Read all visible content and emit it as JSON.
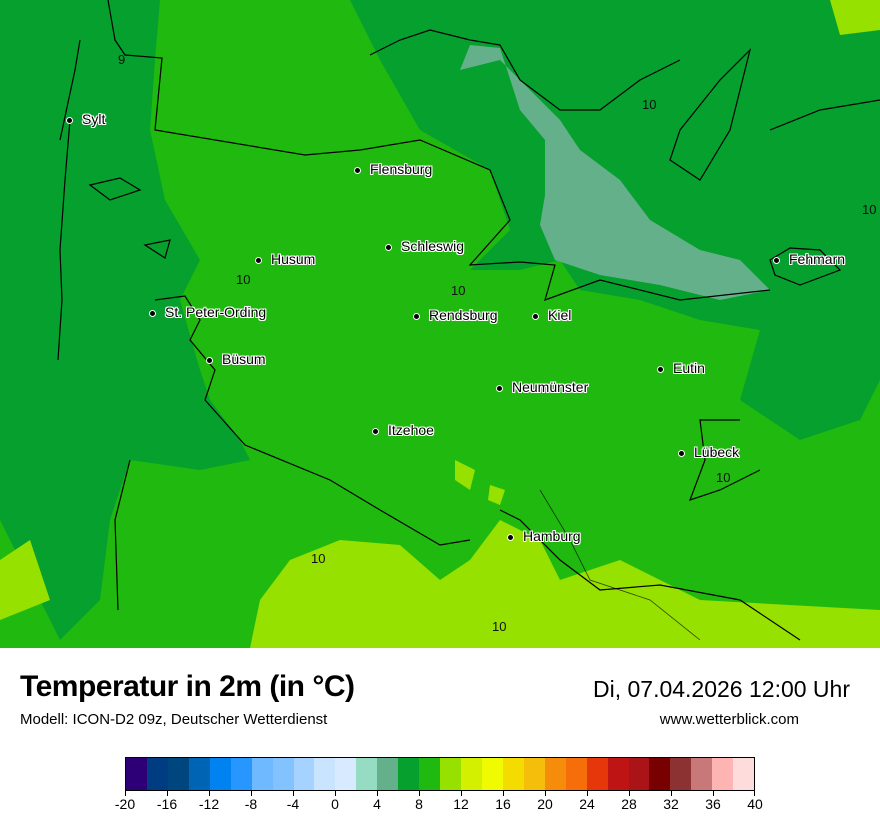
{
  "header": {
    "title": "Temperatur in 2m (in °C)",
    "subtitle": "Modell: ICON-D2 09z, Deutscher Wetterdienst",
    "datetime": "Di, 07.04.2026 12:00 Uhr",
    "website": "www.wetterblick.com"
  },
  "map": {
    "cities": [
      "Sylt",
      "Flensburg",
      "Schleswig",
      "Husum",
      "St. Peter-Ording",
      "Rendsburg",
      "Kiel",
      "Büsum",
      "Neumünster",
      "Eutin",
      "Itzehoe",
      "Lübeck",
      "Hamburg",
      "Fehmarn"
    ],
    "contour_labels": [
      "9",
      "10",
      "10",
      "10",
      "10",
      "10",
      "10",
      "10"
    ],
    "colors": {
      "warm_land": "#20b90f",
      "cool_sea": "#05a02d",
      "warmest": "#96e100",
      "coldest_sea": "#64b08a"
    }
  },
  "legend": {
    "ticks": [
      "-20",
      "-16",
      "-12",
      "-8",
      "-4",
      "0",
      "4",
      "8",
      "12",
      "16",
      "20",
      "24",
      "28",
      "32",
      "36",
      "40"
    ],
    "colors": [
      "#2e0078",
      "#003c82",
      "#00467e",
      "#0064b4",
      "#0082f0",
      "#2896ff",
      "#6eb9ff",
      "#82c3ff",
      "#a5d2ff",
      "#c8e4ff",
      "#d7eaff",
      "#96dcc3",
      "#64b08a",
      "#05a02d",
      "#20b90f",
      "#96e100",
      "#d2f000",
      "#f0fa00",
      "#f5dc00",
      "#f5be0a",
      "#f58c0a",
      "#f56e0a",
      "#e6370a",
      "#be1414",
      "#aa1419",
      "#780000",
      "#8c3232",
      "#c87878",
      "#ffb4b4",
      "#ffdcdc"
    ]
  }
}
